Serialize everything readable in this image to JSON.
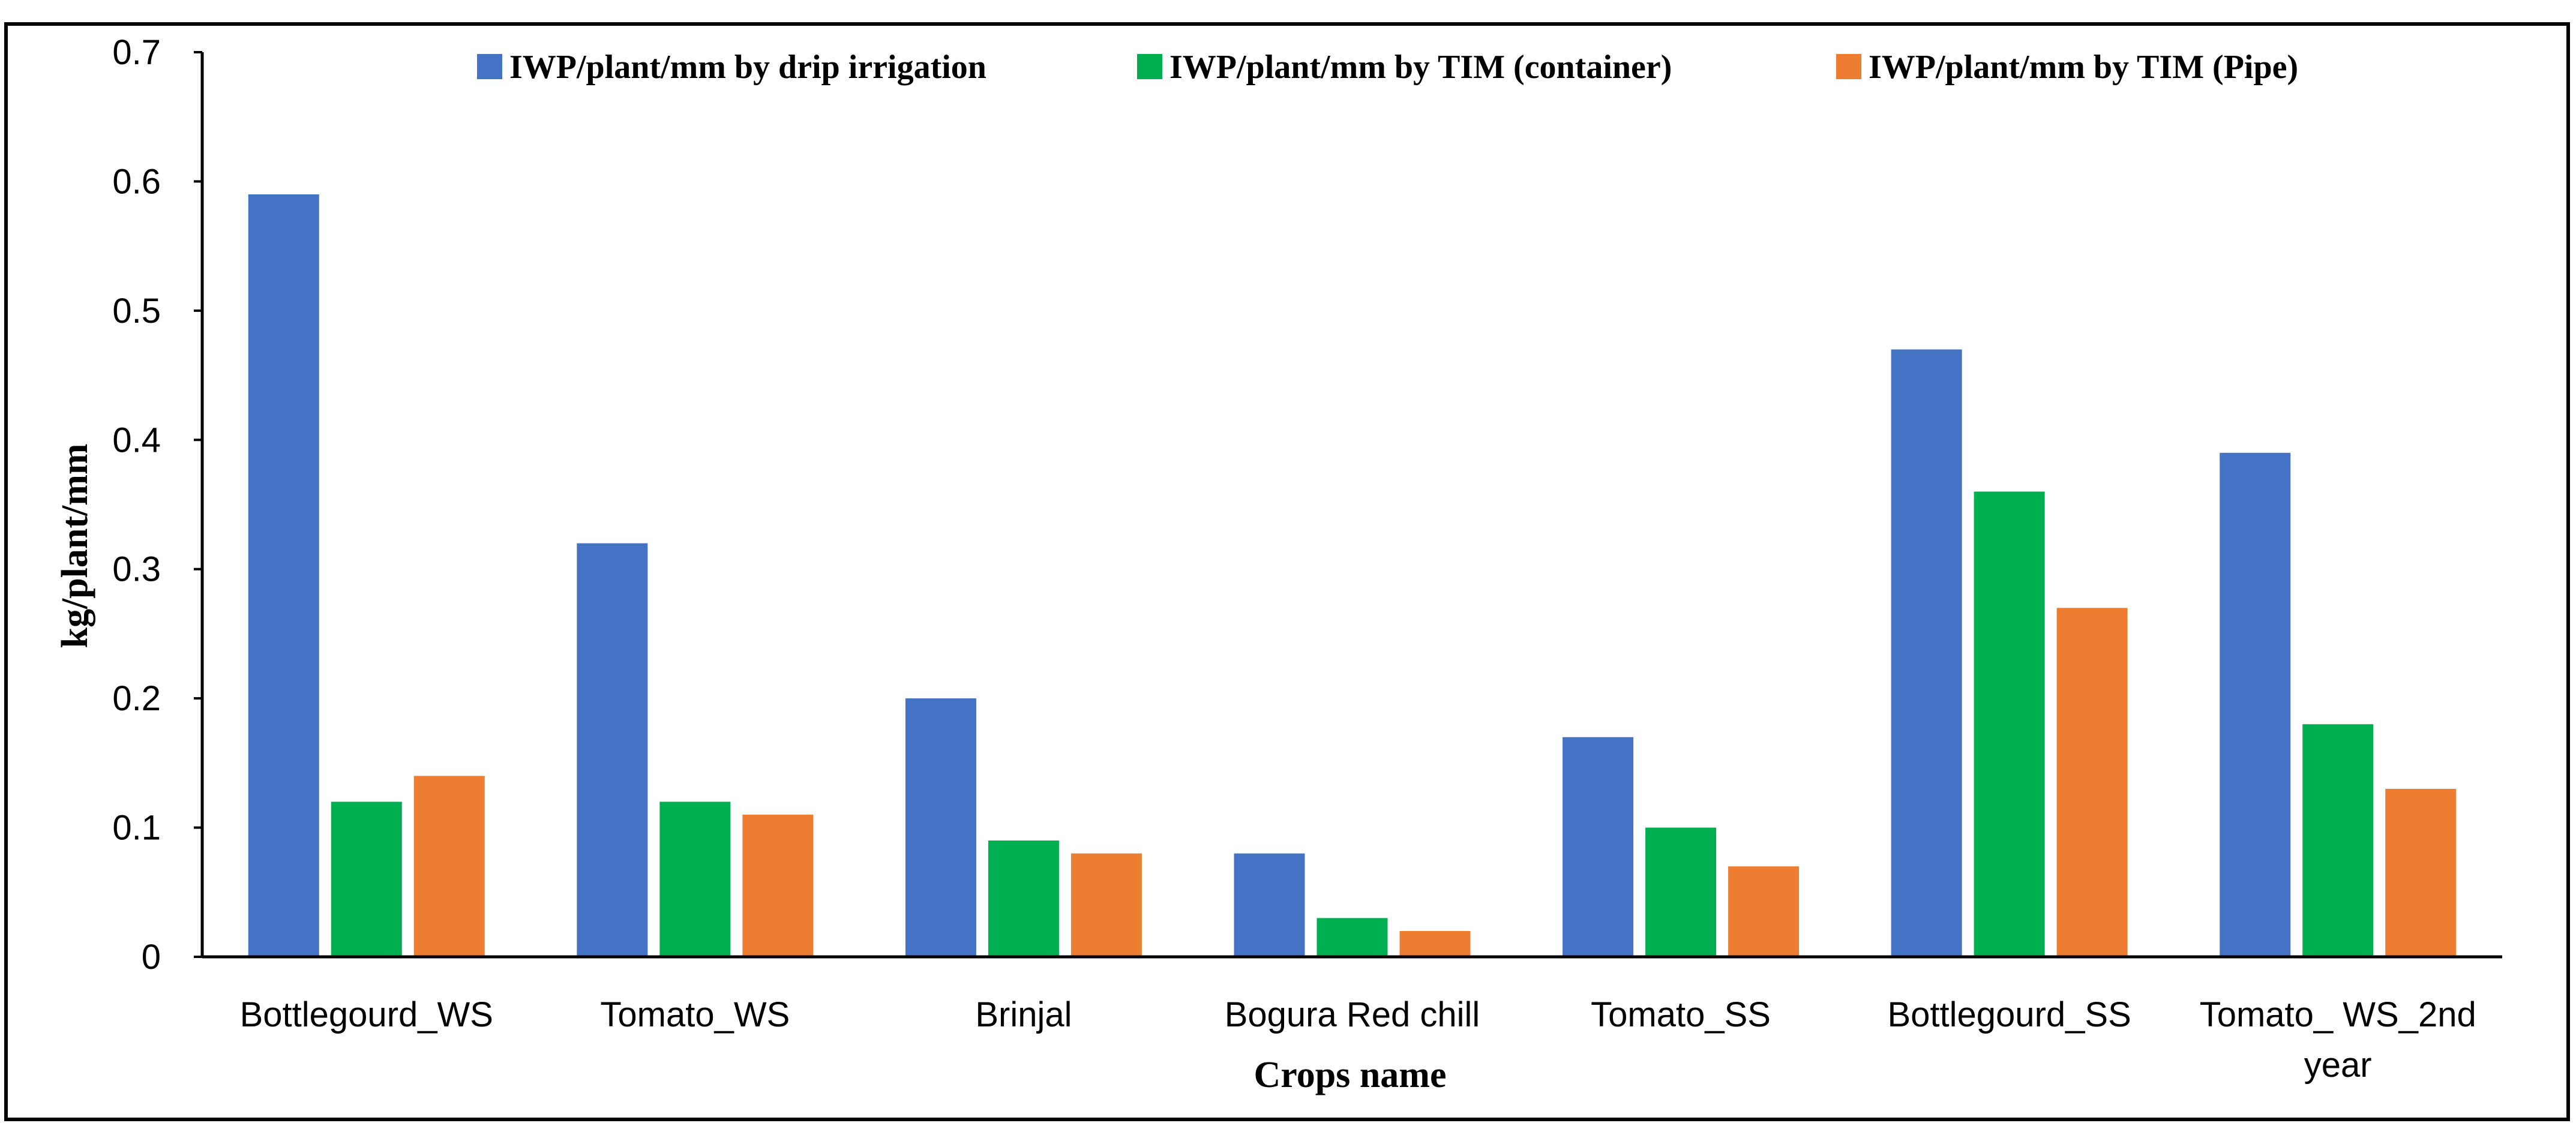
{
  "chart_data": {
    "type": "bar",
    "title": "",
    "xlabel": "Crops name",
    "ylabel": "kg/plant/mm",
    "ylim": [
      0,
      0.7
    ],
    "yticks": [
      "0",
      "0.1",
      "0.2",
      "0.3",
      "0.4",
      "0.5",
      "0.6",
      "0.7"
    ],
    "grid": false,
    "legend_position": "top",
    "categories": [
      [
        "Bottlegourd_WS"
      ],
      [
        "Tomato_WS"
      ],
      [
        "Brinjal"
      ],
      [
        "Bogura Red chill"
      ],
      [
        "Tomato_SS"
      ],
      [
        "Bottlegourd_SS"
      ],
      [
        "Tomato_ WS_2nd",
        "year"
      ]
    ],
    "series": [
      {
        "name": "IWP/plant/mm by drip irrigation",
        "color": "#4472C4",
        "values": [
          0.59,
          0.32,
          0.2,
          0.08,
          0.17,
          0.47,
          0.39
        ]
      },
      {
        "name": "IWP/plant/mm by TIM (container)",
        "color": "#00B050",
        "values": [
          0.12,
          0.12,
          0.09,
          0.03,
          0.1,
          0.36,
          0.18
        ]
      },
      {
        "name": "IWP/plant/mm by TIM (Pipe)",
        "color": "#ED7D31",
        "values": [
          0.14,
          0.11,
          0.08,
          0.02,
          0.07,
          0.27,
          0.13
        ]
      }
    ]
  }
}
